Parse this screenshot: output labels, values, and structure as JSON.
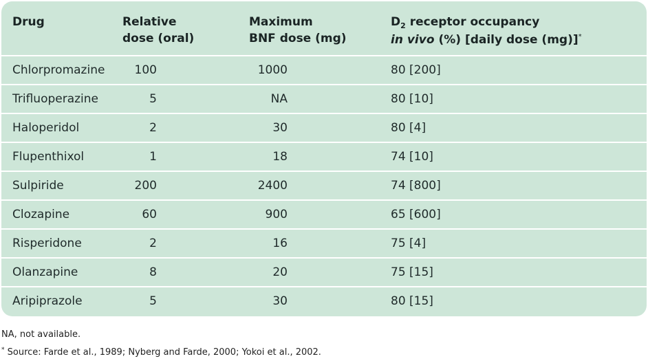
{
  "table": {
    "headers": {
      "drug": [
        "Drug"
      ],
      "relative_dose": [
        "Relative",
        "dose (oral)"
      ],
      "max_bnf": [
        "Maximum",
        "BNF dose (mg)"
      ],
      "d2": {
        "line1_prefix": "D",
        "line1_subscript": "2",
        "line1_suffix": " receptor occupancy",
        "line2_italic": "in vivo",
        "line2_rest": " (%) [daily dose (mg)]",
        "line2_marker": "*"
      }
    },
    "rows": [
      {
        "drug": "Chlorpromazine",
        "relative_dose": "100",
        "max_bnf": "1000",
        "d2": "80 [200]"
      },
      {
        "drug": "Trifluoperazine",
        "relative_dose": "5",
        "max_bnf": "NA",
        "d2": "80 [10]"
      },
      {
        "drug": "Haloperidol",
        "relative_dose": "2",
        "max_bnf": "30",
        "d2": "80 [4]"
      },
      {
        "drug": "Flupenthixol",
        "relative_dose": "1",
        "max_bnf": "18",
        "d2": "74 [10]"
      },
      {
        "drug": "Sulpiride",
        "relative_dose": "200",
        "max_bnf": "2400",
        "d2": "74 [800]"
      },
      {
        "drug": "Clozapine",
        "relative_dose": "60",
        "max_bnf": "900",
        "d2": "65 [600]"
      },
      {
        "drug": "Risperidone",
        "relative_dose": "2",
        "max_bnf": "16",
        "d2": "75 [4]"
      },
      {
        "drug": "Olanzapine",
        "relative_dose": "8",
        "max_bnf": "20",
        "d2": "75 [15]"
      },
      {
        "drug": "Aripiprazole",
        "relative_dose": "5",
        "max_bnf": "30",
        "d2": "80 [15]"
      }
    ]
  },
  "footnotes": {
    "na": "NA, not available.",
    "source_marker": "*",
    "source": " Source: Farde et al., 1989; Nyberg and Farde, 2000; Yokoi et al., 2002."
  },
  "colors": {
    "table_background": "#cde6d8",
    "row_divider": "#ffffff"
  }
}
